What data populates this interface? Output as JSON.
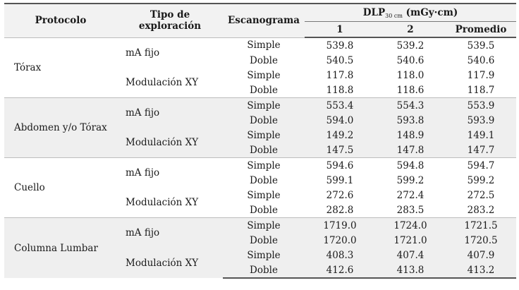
{
  "header": {
    "protocolo": "Protocolo",
    "tipo": "Tipo de exploración",
    "escanograma": "Escanograma",
    "dlp_main": "DLP",
    "dlp_sub": "30 cm",
    "dlp_unit": "(mGy·cm)",
    "col1": "1",
    "col2": "2",
    "col3": "Promedio"
  },
  "groups": [
    {
      "protocolo": "Tórax",
      "tipos": [
        {
          "label": "mA fijo",
          "rows": [
            {
              "esc": "Simple",
              "v1": "539.8",
              "v2": "539.2",
              "avg": "539.5"
            },
            {
              "esc": "Doble",
              "v1": "540.5",
              "v2": "540.6",
              "avg": "540.6"
            }
          ]
        },
        {
          "label": "Modulación XY",
          "rows": [
            {
              "esc": "Simple",
              "v1": "117.8",
              "v2": "118.0",
              "avg": "117.9"
            },
            {
              "esc": "Doble",
              "v1": "118.8",
              "v2": "118.6",
              "avg": "118.7"
            }
          ]
        }
      ]
    },
    {
      "protocolo": "Abdomen y/o Tórax",
      "tipos": [
        {
          "label": "mA fijo",
          "rows": [
            {
              "esc": "Simple",
              "v1": "553.4",
              "v2": "554.3",
              "avg": "553.9"
            },
            {
              "esc": "Doble",
              "v1": "594.0",
              "v2": "593.8",
              "avg": "593.9"
            }
          ]
        },
        {
          "label": "Modulación XY",
          "rows": [
            {
              "esc": "Simple",
              "v1": "149.2",
              "v2": "148.9",
              "avg": "149.1"
            },
            {
              "esc": "Doble",
              "v1": "147.5",
              "v2": "147.8",
              "avg": "147.7"
            }
          ]
        }
      ]
    },
    {
      "protocolo": "Cuello",
      "tipos": [
        {
          "label": "mA fijo",
          "rows": [
            {
              "esc": "Simple",
              "v1": "594.6",
              "v2": "594.8",
              "avg": "594.7"
            },
            {
              "esc": "Doble",
              "v1": "599.1",
              "v2": "599.2",
              "avg": "599.2"
            }
          ]
        },
        {
          "label": "Modulación XY",
          "rows": [
            {
              "esc": "Simple",
              "v1": "272.6",
              "v2": "272.4",
              "avg": "272.5"
            },
            {
              "esc": "Doble",
              "v1": "282.8",
              "v2": "283.5",
              "avg": "283.2"
            }
          ]
        }
      ]
    },
    {
      "protocolo": "Columna Lumbar",
      "tipos": [
        {
          "label": "mA fijo",
          "rows": [
            {
              "esc": "Simple",
              "v1": "1719.0",
              "v2": "1724.0",
              "avg": "1721.5"
            },
            {
              "esc": "Doble",
              "v1": "1720.0",
              "v2": "1721.0",
              "avg": "1720.5"
            }
          ]
        },
        {
          "label": "Modulación XY",
          "rows": [
            {
              "esc": "Simple",
              "v1": "408.3",
              "v2": "407.4",
              "avg": "407.9"
            },
            {
              "esc": "Doble",
              "v1": "412.6",
              "v2": "413.8",
              "avg": "413.2"
            }
          ]
        }
      ]
    }
  ]
}
